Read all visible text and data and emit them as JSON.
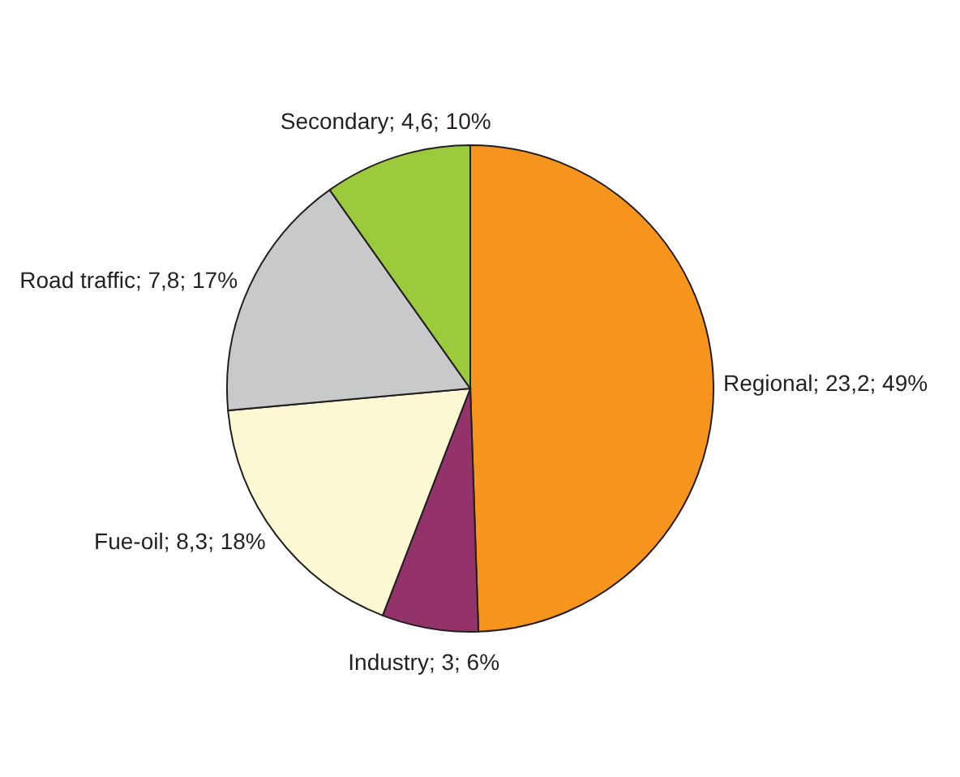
{
  "chart_data": {
    "type": "pie",
    "categories": [
      "Regional",
      "Industry",
      "Fue-oil",
      "Road traffic",
      "Secondary"
    ],
    "values": [
      23.2,
      3,
      8.3,
      7.8,
      4.6
    ],
    "value_labels": [
      "23,2; 49%",
      "3; 6%",
      "8,3; 18%",
      "7,8; 17%",
      "4,6; 10%"
    ],
    "colors": [
      "#f7941d",
      "#94336a",
      "#fbf8d3",
      "#c8c9cb",
      "#9bcb3c"
    ]
  }
}
